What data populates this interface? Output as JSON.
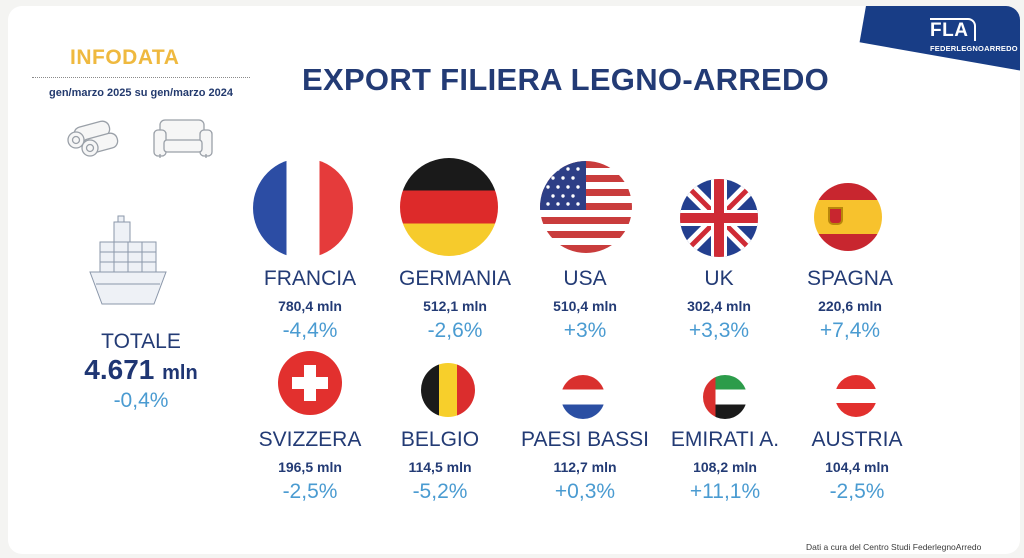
{
  "header": {
    "infodata": "INFODATA",
    "period": "gen/marzo 2025 su gen/marzo 2024",
    "title": "EXPORT FILIERA LEGNO-ARREDO"
  },
  "logo": {
    "mark": "FLA",
    "name": "FEDERLEGNOARREDO",
    "band_color": "#183d86"
  },
  "total": {
    "label": "TOTALE",
    "value": "4.671",
    "unit": "mln",
    "change": "-0,4%"
  },
  "footer": {
    "credit": "Dati a cura del Centro Studi FederlegnoArredo"
  },
  "chart_data": {
    "type": "table",
    "title": "EXPORT FILIERA LEGNO-ARREDO",
    "subtitle": "gen/marzo 2025 su gen/marzo 2024",
    "unit": "mln",
    "categories": [
      "FRANCIA",
      "GERMANIA",
      "USA",
      "UK",
      "SPAGNA",
      "SVIZZERA",
      "BELGIO",
      "PAESI BASSI",
      "EMIRATI A.",
      "AUSTRIA"
    ],
    "values": [
      780.4,
      512.1,
      510.4,
      302.4,
      220.6,
      196.5,
      114.5,
      112.7,
      108.2,
      104.4
    ],
    "changes_pct": [
      -4.4,
      -2.6,
      3,
      3.3,
      7.4,
      -2.5,
      -5.2,
      0.3,
      11.1,
      -2.5
    ],
    "countries": [
      {
        "name": "FRANCIA",
        "value": "780,4 mln",
        "change": "-4,4%",
        "flag": "france"
      },
      {
        "name": "GERMANIA",
        "value": "512,1 mln",
        "change": "-2,6%",
        "flag": "germany"
      },
      {
        "name": "USA",
        "value": "510,4 mln",
        "change": "+3%",
        "flag": "usa"
      },
      {
        "name": "UK",
        "value": "302,4 mln",
        "change": "+3,3%",
        "flag": "uk"
      },
      {
        "name": "SPAGNA",
        "value": "220,6 mln",
        "change": "+7,4%",
        "flag": "spain"
      },
      {
        "name": "SVIZZERA",
        "value": "196,5 mln",
        "change": "-2,5%",
        "flag": "switzerland"
      },
      {
        "name": "BELGIO",
        "value": "114,5 mln",
        "change": "-5,2%",
        "flag": "belgium"
      },
      {
        "name": "PAESI BASSI",
        "value": "112,7 mln",
        "change": "+0,3%",
        "flag": "netherlands"
      },
      {
        "name": "EMIRATI A.",
        "value": "108,2 mln",
        "change": "+11,1%",
        "flag": "uae"
      },
      {
        "name": "AUSTRIA",
        "value": "104,4 mln",
        "change": "-2,5%",
        "flag": "austria"
      }
    ]
  },
  "colors": {
    "title": "#233b75",
    "accent": "#efb93f",
    "change": "#4a9bd1"
  }
}
